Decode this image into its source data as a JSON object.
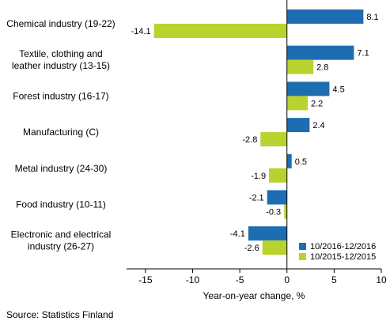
{
  "chart_data": {
    "type": "bar",
    "orientation": "horizontal",
    "categories": [
      [
        "Chemical industry (19-22)"
      ],
      [
        "Textile, clothing and",
        "leather industry (13-15)"
      ],
      [
        "Forest industry (16-17)"
      ],
      [
        "Manufacturing (C)"
      ],
      [
        "Metal industry (24-30)"
      ],
      [
        "Food industry (10-11)"
      ],
      [
        "Electronic and electrical",
        "industry (26-27)"
      ]
    ],
    "series": [
      {
        "name": "10/2016-12/2016",
        "color": "#1f6db1",
        "values": [
          8.1,
          7.1,
          4.5,
          2.4,
          0.5,
          -2.1,
          -4.1
        ]
      },
      {
        "name": "10/2015-12/2015",
        "color": "#b9d22e",
        "values": [
          -14.1,
          2.8,
          2.2,
          -2.8,
          -1.9,
          -0.3,
          -2.6
        ]
      }
    ],
    "xlabel": "Year-on-year change, %",
    "xlim": [
      -17,
      10
    ],
    "xticks": [
      -15,
      -10,
      -5,
      0,
      5,
      10
    ],
    "legend_position": "bottom-right",
    "grid": false
  },
  "footer": {
    "source": "Source: Statistics Finland"
  }
}
